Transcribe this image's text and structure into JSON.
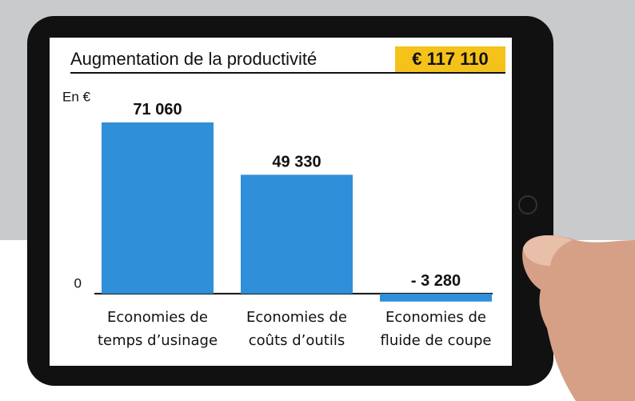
{
  "chart_data": {
    "type": "bar",
    "title": "Augmentation de la productivité",
    "total_label": "€ 117 110",
    "ylabel": "En €",
    "categories": [
      "Economies de temps d’usinage",
      "Economies de coûts d’outils",
      "Economies de fluide de coupe"
    ],
    "values": [
      71060,
      49330,
      -3280
    ],
    "value_labels": [
      "71 060",
      "49 330",
      "- 3 280"
    ],
    "color": "#2f8fd8",
    "ylim": [
      -10000,
      80000
    ],
    "yticks": [
      0
    ],
    "grid": false
  }
}
